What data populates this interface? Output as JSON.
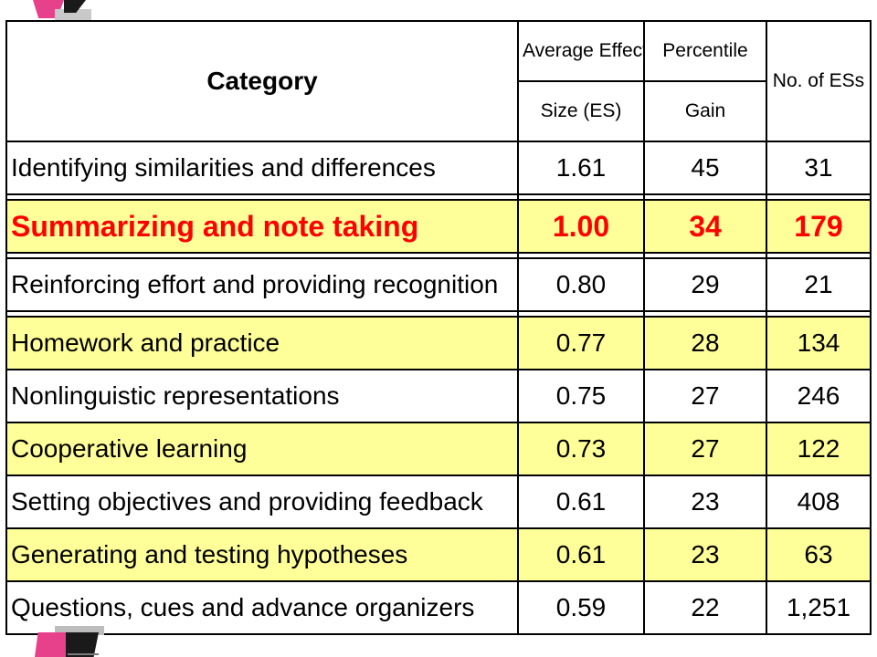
{
  "table": {
    "headers": {
      "category": "Category",
      "effect_top": "Average Effect",
      "effect_bottom": "Size (ES)",
      "percentile_top": "Percentile",
      "percentile_bottom": "Gain",
      "count": "No. of ESs"
    },
    "rows": [
      {
        "category": "Identifying similarities and differences",
        "effect_size": "1.61",
        "percentile_gain": "45",
        "count": "31",
        "style": "white"
      },
      {
        "category": "Summarizing and note taking",
        "effect_size": "1.00",
        "percentile_gain": "34",
        "count": "179",
        "style": "highlight"
      },
      {
        "category": "Reinforcing effort and providing recognition",
        "effect_size": "0.80",
        "percentile_gain": "29",
        "count": "21",
        "style": "white"
      },
      {
        "category": "Homework and practice",
        "effect_size": "0.77",
        "percentile_gain": "28",
        "count": "134",
        "style": "yellow"
      },
      {
        "category": "Nonlinguistic representations",
        "effect_size": "0.75",
        "percentile_gain": "27",
        "count": "246",
        "style": "white"
      },
      {
        "category": "Cooperative learning",
        "effect_size": "0.73",
        "percentile_gain": "27",
        "count": "122",
        "style": "yellow"
      },
      {
        "category": "Setting objectives and providing feedback",
        "effect_size": "0.61",
        "percentile_gain": "23",
        "count": "408",
        "style": "white"
      },
      {
        "category": "Generating and testing hypotheses",
        "effect_size": "0.61",
        "percentile_gain": "23",
        "count": "63",
        "style": "yellow"
      },
      {
        "category": "Questions, cues and advance organizers",
        "effect_size": "0.59",
        "percentile_gain": "22",
        "count": "1,251",
        "style": "white"
      }
    ]
  },
  "colors": {
    "highlight_fill": "#ffff99",
    "highlight_text": "#ff0000",
    "accent_pink": "#e8418c"
  }
}
